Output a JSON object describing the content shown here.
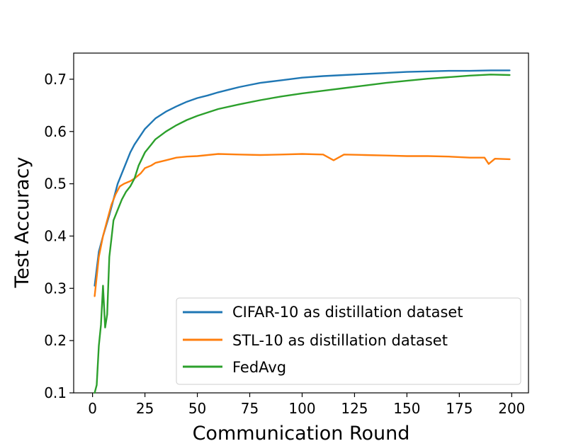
{
  "chart_data": {
    "type": "line",
    "title": "",
    "xlabel": "Communication Round",
    "ylabel": "Test Accuracy",
    "xlim": [
      -9,
      208
    ],
    "ylim": [
      0.1,
      0.75
    ],
    "xticks": [
      0,
      25,
      50,
      75,
      100,
      125,
      150,
      175,
      200
    ],
    "yticks": [
      0.1,
      0.2,
      0.3,
      0.4,
      0.5,
      0.6,
      0.7
    ],
    "xtick_labels": [
      "0",
      "25",
      "50",
      "75",
      "100",
      "125",
      "150",
      "175",
      "200"
    ],
    "ytick_labels": [
      "0.1",
      "0.2",
      "0.3",
      "0.4",
      "0.5",
      "0.6",
      "0.7"
    ],
    "legend_position": "lower-right",
    "series": [
      {
        "name": "CIFAR-10 as distillation dataset",
        "color": "#1f77b4",
        "x": [
          1,
          3,
          5,
          8,
          10,
          12,
          15,
          18,
          20,
          25,
          30,
          35,
          40,
          45,
          50,
          55,
          60,
          65,
          70,
          75,
          80,
          90,
          100,
          110,
          120,
          130,
          140,
          150,
          160,
          170,
          180,
          190,
          199
        ],
        "values": [
          0.305,
          0.37,
          0.4,
          0.44,
          0.47,
          0.5,
          0.53,
          0.56,
          0.575,
          0.605,
          0.625,
          0.638,
          0.648,
          0.657,
          0.664,
          0.669,
          0.675,
          0.68,
          0.685,
          0.689,
          0.693,
          0.698,
          0.703,
          0.706,
          0.708,
          0.71,
          0.712,
          0.714,
          0.715,
          0.716,
          0.716,
          0.717,
          0.717
        ]
      },
      {
        "name": "STL-10 as distillation dataset",
        "color": "#ff7f0e",
        "x": [
          1,
          3,
          5,
          7,
          9,
          11,
          13,
          15,
          18,
          20,
          23,
          25,
          28,
          30,
          35,
          40,
          45,
          50,
          55,
          60,
          70,
          80,
          90,
          100,
          110,
          115,
          120,
          130,
          140,
          150,
          160,
          170,
          180,
          187,
          189,
          192,
          199
        ],
        "values": [
          0.285,
          0.36,
          0.4,
          0.43,
          0.46,
          0.48,
          0.495,
          0.5,
          0.505,
          0.51,
          0.52,
          0.53,
          0.535,
          0.54,
          0.545,
          0.55,
          0.552,
          0.553,
          0.555,
          0.557,
          0.556,
          0.555,
          0.556,
          0.557,
          0.556,
          0.545,
          0.556,
          0.555,
          0.554,
          0.553,
          0.553,
          0.552,
          0.55,
          0.55,
          0.538,
          0.548,
          0.547
        ]
      },
      {
        "name": "FedAvg",
        "color": "#2ca02c",
        "x": [
          1,
          2,
          3,
          4,
          5,
          6,
          7,
          8,
          9,
          10,
          12,
          14,
          16,
          18,
          20,
          22,
          25,
          28,
          30,
          35,
          40,
          45,
          50,
          60,
          70,
          80,
          90,
          100,
          110,
          120,
          130,
          140,
          150,
          160,
          170,
          180,
          190,
          199
        ],
        "values": [
          0.1,
          0.115,
          0.19,
          0.23,
          0.305,
          0.225,
          0.25,
          0.36,
          0.395,
          0.43,
          0.45,
          0.47,
          0.485,
          0.495,
          0.51,
          0.535,
          0.56,
          0.575,
          0.585,
          0.6,
          0.612,
          0.622,
          0.63,
          0.643,
          0.652,
          0.66,
          0.667,
          0.673,
          0.678,
          0.683,
          0.688,
          0.693,
          0.697,
          0.701,
          0.704,
          0.707,
          0.709,
          0.708
        ]
      }
    ]
  }
}
